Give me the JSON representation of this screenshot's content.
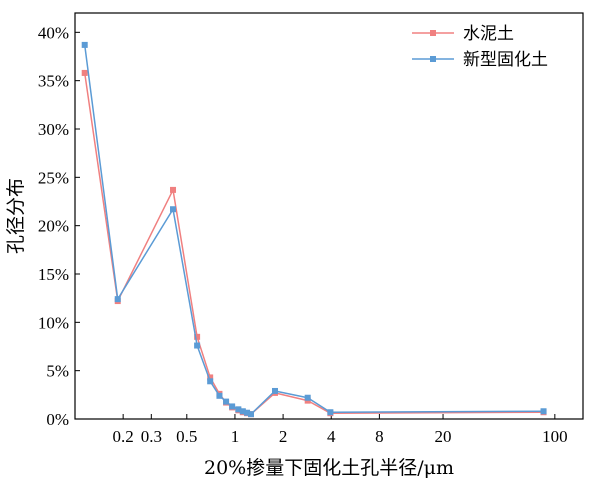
{
  "chart_data": {
    "type": "line",
    "title": "",
    "xlabel": "20%掺量下固化土孔半径/μm",
    "ylabel": "孔径分布",
    "x_scale": "log",
    "xlim": [
      0.1,
      150
    ],
    "ylim": [
      0,
      42
    ],
    "x_ticks": [
      0.2,
      0.3,
      0.5,
      1,
      2,
      4,
      8,
      20,
      100
    ],
    "x_tick_labels": [
      "0.2",
      "0.3",
      "0.5",
      "1",
      "2",
      "4",
      "8",
      "20",
      "100"
    ],
    "y_ticks": [
      0,
      5,
      10,
      15,
      20,
      25,
      30,
      35,
      40
    ],
    "y_tick_labels": [
      "0%",
      "5%",
      "10%",
      "15%",
      "20%",
      "25%",
      "30%",
      "35%",
      "40%"
    ],
    "grid": false,
    "legend_position": "top-right",
    "series": [
      {
        "name": "水泥土",
        "color": "#f08080",
        "marker": "square",
        "x": [
          0.115,
          0.185,
          0.41,
          0.58,
          0.7,
          0.8,
          0.88,
          0.96,
          1.05,
          1.12,
          1.19,
          1.26,
          1.78,
          2.85,
          3.95,
          85
        ],
        "y": [
          35.8,
          12.2,
          23.7,
          8.5,
          4.3,
          2.6,
          1.7,
          1.2,
          0.9,
          0.7,
          0.6,
          0.5,
          2.7,
          1.9,
          0.6,
          0.7
        ]
      },
      {
        "name": "新型固化土",
        "color": "#5b9bd5",
        "marker": "square",
        "x": [
          0.115,
          0.185,
          0.41,
          0.58,
          0.7,
          0.8,
          0.88,
          0.96,
          1.05,
          1.12,
          1.19,
          1.26,
          1.78,
          2.85,
          3.95,
          85
        ],
        "y": [
          38.7,
          12.4,
          21.7,
          7.6,
          3.9,
          2.4,
          1.8,
          1.3,
          1.0,
          0.8,
          0.65,
          0.5,
          2.9,
          2.2,
          0.7,
          0.8
        ]
      }
    ]
  }
}
